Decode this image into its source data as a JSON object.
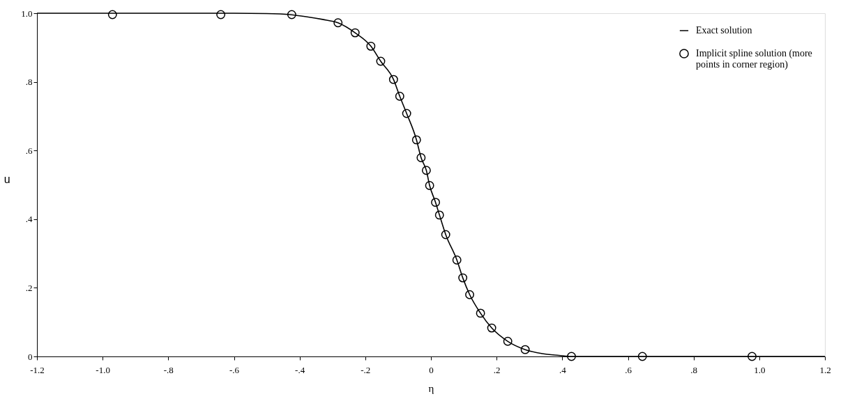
{
  "chart_data": {
    "type": "scatter",
    "xlabel": "η",
    "ylabel": "u",
    "xlim": [
      -1.2,
      1.2
    ],
    "ylim": [
      0,
      1.0
    ],
    "xticks": [
      {
        "value": -1.2,
        "label": "-1.2"
      },
      {
        "value": -1.0,
        "label": "-1.0"
      },
      {
        "value": -0.8,
        "label": "-.8"
      },
      {
        "value": -0.6,
        "label": "-.6"
      },
      {
        "value": -0.4,
        "label": "-.4"
      },
      {
        "value": -0.2,
        "label": "-.2"
      },
      0,
      {
        "value": 0.2,
        "label": ".2"
      },
      {
        "value": 0.4,
        "label": ".4"
      },
      {
        "value": 0.6,
        "label": ".6"
      },
      {
        "value": 0.8,
        "label": ".8"
      },
      {
        "value": 1.0,
        "label": "1.0"
      },
      {
        "value": 1.2,
        "label": "1.2"
      }
    ],
    "yticks": [
      0,
      {
        "value": 0.2,
        "label": ".2"
      },
      {
        "value": 0.4,
        "label": ".4"
      },
      {
        "value": 0.6,
        "label": ".6"
      },
      {
        "value": 0.8,
        "label": ".8"
      },
      {
        "value": 1.0,
        "label": "1.0"
      }
    ],
    "grid": false,
    "legend": "top right",
    "line_style": "solid",
    "series": [
      {
        "name": "Exact solution",
        "type": "line",
        "color": "#000000",
        "x": [
          -1.2,
          -0.8,
          -0.6,
          -0.5,
          -0.43,
          -0.38,
          -0.33,
          -0.283,
          -0.231,
          -0.183,
          -0.153,
          -0.114,
          -0.095,
          -0.074,
          -0.044,
          -0.03,
          -0.014,
          -0.004,
          0.014,
          0.026,
          0.045,
          0.079,
          0.097,
          0.118,
          0.151,
          0.185,
          0.234,
          0.287,
          0.34,
          0.39,
          0.428,
          0.6,
          1.2
        ],
        "values": [
          1.0,
          1.0,
          1.0,
          0.999,
          0.996,
          0.99,
          0.982,
          0.972,
          0.943,
          0.904,
          0.86,
          0.807,
          0.758,
          0.708,
          0.631,
          0.579,
          0.542,
          0.498,
          0.449,
          0.412,
          0.355,
          0.281,
          0.229,
          0.18,
          0.126,
          0.083,
          0.044,
          0.02,
          0.008,
          0.003,
          0.0,
          0.0,
          0.0
        ]
      },
      {
        "name": "Implicit spline solution (more points in corner region)",
        "marker": "circle",
        "color": "#000000",
        "x": [
          -0.97,
          -0.64,
          -0.424,
          -0.283,
          -0.231,
          -0.183,
          -0.153,
          -0.114,
          -0.095,
          -0.074,
          -0.044,
          -0.03,
          -0.014,
          -0.004,
          0.014,
          0.026,
          0.045,
          0.079,
          0.097,
          0.118,
          0.151,
          0.185,
          0.234,
          0.287,
          0.428,
          0.644,
          0.978
        ],
        "values": [
          0.996,
          0.996,
          0.996,
          0.972,
          0.943,
          0.904,
          0.86,
          0.807,
          0.758,
          0.708,
          0.631,
          0.579,
          0.542,
          0.498,
          0.449,
          0.412,
          0.355,
          0.281,
          0.229,
          0.18,
          0.126,
          0.083,
          0.044,
          0.02,
          0.0,
          0.0,
          0.0
        ]
      }
    ]
  }
}
